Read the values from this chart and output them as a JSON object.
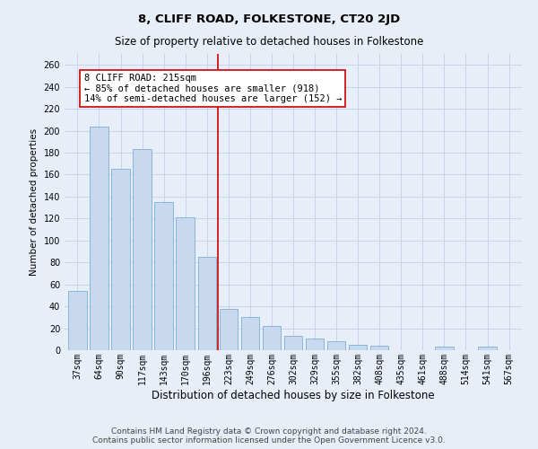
{
  "title": "8, CLIFF ROAD, FOLKESTONE, CT20 2JD",
  "subtitle": "Size of property relative to detached houses in Folkestone",
  "xlabel": "Distribution of detached houses by size in Folkestone",
  "ylabel": "Number of detached properties",
  "categories": [
    "37sqm",
    "64sqm",
    "90sqm",
    "117sqm",
    "143sqm",
    "170sqm",
    "196sqm",
    "223sqm",
    "249sqm",
    "276sqm",
    "302sqm",
    "329sqm",
    "355sqm",
    "382sqm",
    "408sqm",
    "435sqm",
    "461sqm",
    "488sqm",
    "514sqm",
    "541sqm",
    "567sqm"
  ],
  "values": [
    54,
    204,
    165,
    183,
    135,
    121,
    85,
    38,
    30,
    22,
    13,
    11,
    8,
    5,
    4,
    0,
    0,
    3,
    0,
    3,
    0
  ],
  "bar_color": "#c8d9ef",
  "bar_edge_color": "#7aafd4",
  "vline_x": 6.5,
  "vline_color": "#cc0000",
  "annotation_text": "8 CLIFF ROAD: 215sqm\n← 85% of detached houses are smaller (918)\n14% of semi-detached houses are larger (152) →",
  "annotation_box_color": "#ffffff",
  "annotation_box_edge": "#cc0000",
  "ylim": [
    0,
    270
  ],
  "yticks": [
    0,
    20,
    40,
    60,
    80,
    100,
    120,
    140,
    160,
    180,
    200,
    220,
    240,
    260
  ],
  "grid_color": "#c8d4e8",
  "background_color": "#e8eef8",
  "footnote": "Contains HM Land Registry data © Crown copyright and database right 2024.\nContains public sector information licensed under the Open Government Licence v3.0.",
  "title_fontsize": 9.5,
  "subtitle_fontsize": 8.5,
  "xlabel_fontsize": 8.5,
  "ylabel_fontsize": 7.5,
  "tick_fontsize": 7,
  "annot_fontsize": 7.5,
  "footnote_fontsize": 6.5
}
